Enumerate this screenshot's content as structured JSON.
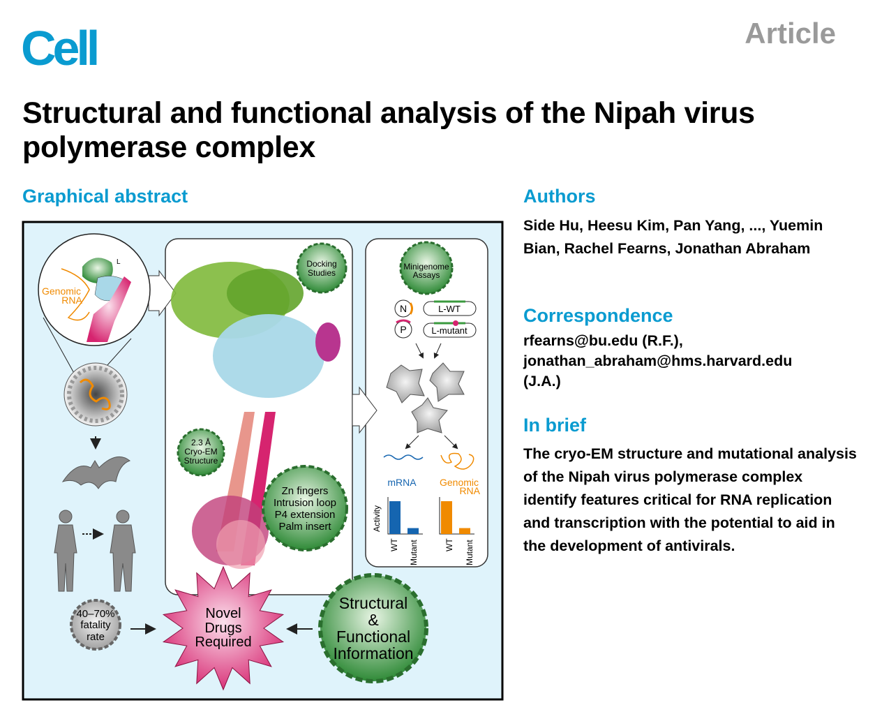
{
  "journal": {
    "logo": "Cell",
    "article_type": "Article"
  },
  "title": "Structural and functional analysis of the Nipah virus polymerase complex",
  "graphical_abstract": {
    "heading": "Graphical abstract",
    "labels": {
      "l_label": "L",
      "genomic_rna_1": "Genomic",
      "genomic_rna_2": "RNA",
      "docking_1": "Docking",
      "docking_2": "Studies",
      "minigenome_1": "Minigenome",
      "minigenome_2": "Assays",
      "n": "N",
      "p": "P",
      "l_wt": "L-WT",
      "l_mutant": "L-mutant",
      "cryo_1": "2.3 Å",
      "cryo_2": "Cryo-EM",
      "cryo_3": "Structure",
      "zn_1": "Zn fingers",
      "zn_2": "Intrusion loop",
      "zn_3": "P4 extension",
      "zn_4": "Palm insert",
      "mrna": "mRNA",
      "genomic_1": "Genomic",
      "genomic_2": "RNA",
      "activity": "Activity",
      "wt": "WT",
      "mutant": "Mutant",
      "fatality_1": "40–70%",
      "fatality_2": "fatality",
      "fatality_3": "rate",
      "drugs_1": "Novel",
      "drugs_2": "Drugs",
      "drugs_3": "Required",
      "info_1": "Structural",
      "info_2": "&",
      "info_3": "Functional",
      "info_4": "Information"
    },
    "colors": {
      "background": "#dff3fb",
      "green": "#3a9a3e",
      "magenta": "#d6246f",
      "mrna_blue": "#1565b0",
      "genomic_orange": "#f08a00",
      "light_blue": "#a9d8e8"
    }
  },
  "authors": {
    "heading": "Authors",
    "text": "Side Hu, Heesu Kim, Pan Yang, ..., Yuemin Bian, Rachel Fearns, Jonathan Abraham"
  },
  "correspondence": {
    "heading": "Correspondence",
    "lines": [
      "rfearns@bu.edu (R.F.),",
      "jonathan_abraham@hms.harvard.edu",
      "(J.A.)"
    ]
  },
  "in_brief": {
    "heading": "In brief",
    "text": "The cryo-EM structure and mutational analysis of the Nipah virus polymerase complex identify features critical for RNA replication and transcription with the potential to aid in the development of antivirals."
  }
}
